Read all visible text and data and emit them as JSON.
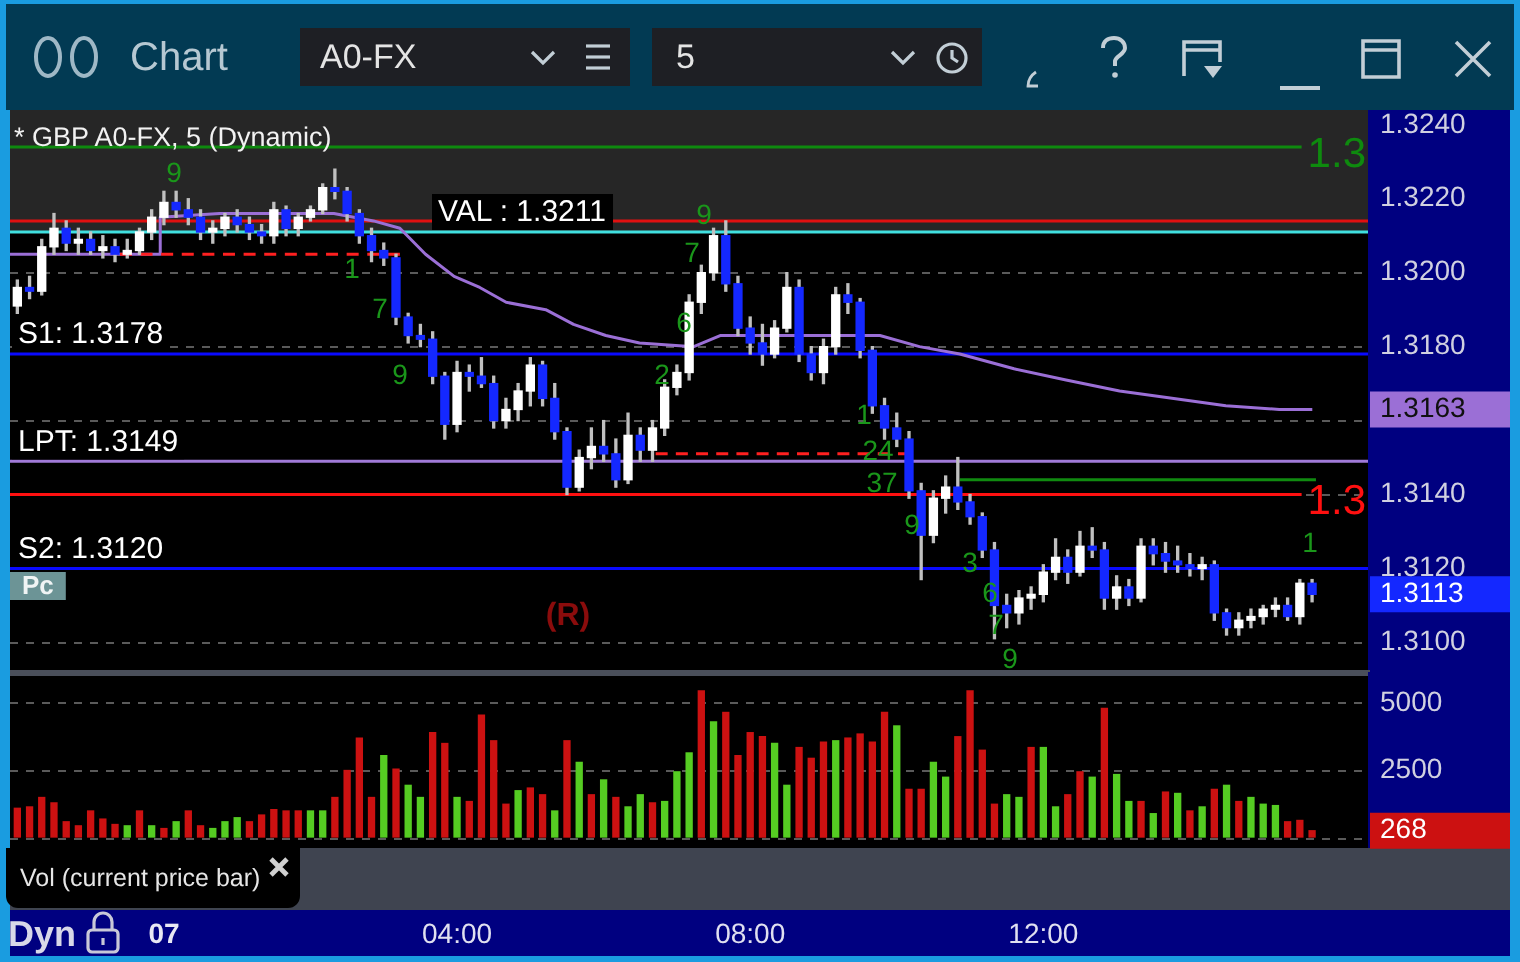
{
  "chart_data": [
    {
      "type": "candlestick",
      "title": "* GBP A0-FX, 5 (Dynamic)",
      "x": [
        -2,
        -1.833,
        -1.667,
        -1.5,
        -1.333,
        -1.167,
        -1,
        -0.833,
        -0.667,
        -0.5,
        -0.333,
        -0.167,
        0,
        0.167,
        0.333,
        0.5,
        0.667,
        0.833,
        1,
        1.167,
        1.333,
        1.5,
        1.667,
        1.833,
        2,
        2.167,
        2.333,
        2.5,
        2.667,
        2.833,
        3,
        3.167,
        3.333,
        3.5,
        3.667,
        3.833,
        4,
        4.167,
        4.333,
        4.5,
        4.667,
        4.833,
        5,
        5.167,
        5.333,
        5.5,
        5.667,
        5.833,
        6,
        6.167,
        6.333,
        6.5,
        6.667,
        6.833,
        7,
        7.167,
        7.333,
        7.5,
        7.667,
        7.833,
        8,
        8.167,
        8.333,
        8.5,
        8.667,
        8.833,
        9,
        9.167,
        9.333,
        9.5,
        9.667,
        9.833,
        10,
        10.167,
        10.333,
        10.5,
        10.667,
        10.833,
        11,
        11.167,
        11.333,
        11.5,
        11.667,
        11.833,
        12,
        12.167,
        12.333,
        12.5,
        12.667,
        12.833,
        13,
        13.167,
        13.333,
        13.5,
        13.667,
        13.833,
        14,
        14.167,
        14.333,
        14.5,
        14.667,
        14.833,
        15,
        15.167,
        15.333,
        15.5,
        15.667
      ],
      "ohlc": [
        [
          1.3191,
          1.3198,
          1.3189,
          1.3196
        ],
        [
          1.3196,
          1.3199,
          1.3193,
          1.3195
        ],
        [
          1.3195,
          1.3209,
          1.3194,
          1.3207
        ],
        [
          1.3207,
          1.3216,
          1.3205,
          1.3212
        ],
        [
          1.3212,
          1.3214,
          1.3206,
          1.3208
        ],
        [
          1.3208,
          1.3212,
          1.3205,
          1.3209
        ],
        [
          1.3209,
          1.3211,
          1.3205,
          1.3206
        ],
        [
          1.3206,
          1.321,
          1.3204,
          1.3207
        ],
        [
          1.3207,
          1.3209,
          1.3203,
          1.3205
        ],
        [
          1.3205,
          1.3209,
          1.3204,
          1.3206
        ],
        [
          1.3206,
          1.3212,
          1.3205,
          1.3211
        ],
        [
          1.3211,
          1.3217,
          1.3209,
          1.3215
        ],
        [
          1.3215,
          1.3222,
          1.3213,
          1.3219
        ],
        [
          1.3219,
          1.3222,
          1.3215,
          1.3217
        ],
        [
          1.3217,
          1.322,
          1.3213,
          1.3215
        ],
        [
          1.3215,
          1.3217,
          1.3209,
          1.3211
        ],
        [
          1.3211,
          1.3214,
          1.3208,
          1.3212
        ],
        [
          1.3212,
          1.3216,
          1.321,
          1.3215
        ],
        [
          1.3215,
          1.3217,
          1.3211,
          1.3213
        ],
        [
          1.3213,
          1.3215,
          1.3209,
          1.3211
        ],
        [
          1.3211,
          1.3213,
          1.3208,
          1.321
        ],
        [
          1.321,
          1.3219,
          1.3208,
          1.3217
        ],
        [
          1.3217,
          1.3218,
          1.321,
          1.3212
        ],
        [
          1.3212,
          1.3216,
          1.321,
          1.3215
        ],
        [
          1.3215,
          1.3218,
          1.3214,
          1.3217
        ],
        [
          1.3217,
          1.3224,
          1.3216,
          1.3223
        ],
        [
          1.3223,
          1.3228,
          1.322,
          1.3222
        ],
        [
          1.3222,
          1.3223,
          1.3214,
          1.3216
        ],
        [
          1.3216,
          1.3217,
          1.3208,
          1.321
        ],
        [
          1.321,
          1.3212,
          1.3203,
          1.3206
        ],
        [
          1.3206,
          1.3208,
          1.3202,
          1.3204
        ],
        [
          1.3204,
          1.3205,
          1.3186,
          1.3188
        ],
        [
          1.3188,
          1.3189,
          1.3181,
          1.3183
        ],
        [
          1.3183,
          1.3186,
          1.318,
          1.3182
        ],
        [
          1.3182,
          1.3184,
          1.317,
          1.3172
        ],
        [
          1.3172,
          1.3173,
          1.3155,
          1.3159
        ],
        [
          1.3159,
          1.3176,
          1.3157,
          1.3173
        ],
        [
          1.3173,
          1.3175,
          1.3168,
          1.3172
        ],
        [
          1.3172,
          1.3177,
          1.3169,
          1.317
        ],
        [
          1.317,
          1.3172,
          1.3158,
          1.316
        ],
        [
          1.316,
          1.3166,
          1.3158,
          1.3163
        ],
        [
          1.3163,
          1.317,
          1.316,
          1.3168
        ],
        [
          1.3168,
          1.3177,
          1.3164,
          1.3175
        ],
        [
          1.3175,
          1.3176,
          1.3164,
          1.3166
        ],
        [
          1.3166,
          1.317,
          1.3155,
          1.3157
        ],
        [
          1.3157,
          1.3158,
          1.314,
          1.3142
        ],
        [
          1.3142,
          1.3152,
          1.3141,
          1.315
        ],
        [
          1.315,
          1.3158,
          1.3147,
          1.3153
        ],
        [
          1.3153,
          1.316,
          1.3149,
          1.3151
        ],
        [
          1.3151,
          1.3155,
          1.3142,
          1.3144
        ],
        [
          1.3144,
          1.3162,
          1.3143,
          1.3156
        ],
        [
          1.3156,
          1.3158,
          1.3149,
          1.3152
        ],
        [
          1.3152,
          1.316,
          1.3149,
          1.3158
        ],
        [
          1.3158,
          1.3171,
          1.3156,
          1.3169
        ],
        [
          1.3169,
          1.3175,
          1.3167,
          1.3173
        ],
        [
          1.3173,
          1.3194,
          1.3171,
          1.3192
        ],
        [
          1.3192,
          1.3202,
          1.3189,
          1.32
        ],
        [
          1.32,
          1.3212,
          1.3198,
          1.321
        ],
        [
          1.321,
          1.3214,
          1.3195,
          1.3197
        ],
        [
          1.3197,
          1.3199,
          1.3183,
          1.3185
        ],
        [
          1.3185,
          1.3188,
          1.3178,
          1.3181
        ],
        [
          1.3181,
          1.3186,
          1.3175,
          1.3178
        ],
        [
          1.3178,
          1.3187,
          1.3177,
          1.3185
        ],
        [
          1.3185,
          1.32,
          1.3184,
          1.3196
        ],
        [
          1.3196,
          1.3198,
          1.3176,
          1.3178
        ],
        [
          1.3178,
          1.318,
          1.3171,
          1.3173
        ],
        [
          1.3173,
          1.3182,
          1.317,
          1.318
        ],
        [
          1.318,
          1.3196,
          1.3178,
          1.3194
        ],
        [
          1.3194,
          1.3197,
          1.3189,
          1.3192
        ],
        [
          1.3192,
          1.3193,
          1.3177,
          1.3179
        ],
        [
          1.3179,
          1.318,
          1.3162,
          1.3164
        ],
        [
          1.3164,
          1.3166,
          1.3155,
          1.3158
        ],
        [
          1.3158,
          1.3162,
          1.3153,
          1.3155
        ],
        [
          1.3155,
          1.3157,
          1.3139,
          1.3141
        ],
        [
          1.3141,
          1.3143,
          1.3117,
          1.3129
        ],
        [
          1.3129,
          1.3141,
          1.3127,
          1.3139
        ],
        [
          1.3139,
          1.3145,
          1.3135,
          1.3142
        ],
        [
          1.3142,
          1.315,
          1.3136,
          1.3138
        ],
        [
          1.3138,
          1.314,
          1.3132,
          1.3134
        ],
        [
          1.3134,
          1.3135,
          1.3123,
          1.3125
        ],
        [
          1.3125,
          1.3127,
          1.3101,
          1.311
        ],
        [
          1.311,
          1.3113,
          1.3104,
          1.3108
        ],
        [
          1.3108,
          1.3114,
          1.3105,
          1.3112
        ],
        [
          1.3112,
          1.3115,
          1.3109,
          1.3113
        ],
        [
          1.3113,
          1.3121,
          1.3111,
          1.3119
        ],
        [
          1.3119,
          1.3128,
          1.3117,
          1.3123
        ],
        [
          1.3123,
          1.3125,
          1.3116,
          1.3119
        ],
        [
          1.3119,
          1.313,
          1.3118,
          1.3126
        ],
        [
          1.3126,
          1.3131,
          1.3123,
          1.3125
        ],
        [
          1.3125,
          1.3127,
          1.3109,
          1.3112
        ],
        [
          1.3112,
          1.3118,
          1.3109,
          1.3115
        ],
        [
          1.3115,
          1.3117,
          1.311,
          1.3112
        ],
        [
          1.3112,
          1.3128,
          1.3111,
          1.3126
        ],
        [
          1.3126,
          1.3128,
          1.3121,
          1.3124
        ],
        [
          1.3124,
          1.3127,
          1.3119,
          1.3122
        ],
        [
          1.3122,
          1.3126,
          1.3119,
          1.3121
        ],
        [
          1.3121,
          1.3124,
          1.3118,
          1.312
        ],
        [
          1.312,
          1.3123,
          1.3117,
          1.3121
        ],
        [
          1.3121,
          1.3122,
          1.3106,
          1.3108
        ],
        [
          1.3108,
          1.3109,
          1.3102,
          1.3104
        ],
        [
          1.3104,
          1.3108,
          1.3102,
          1.3106
        ],
        [
          1.3106,
          1.3109,
          1.3104,
          1.3107
        ],
        [
          1.3107,
          1.311,
          1.3105,
          1.3109
        ],
        [
          1.3109,
          1.3112,
          1.3107,
          1.311
        ],
        [
          1.311,
          1.3112,
          1.3106,
          1.3107
        ],
        [
          1.3107,
          1.3117,
          1.3105,
          1.3116
        ],
        [
          1.3116,
          1.3117,
          1.3111,
          1.3113
        ]
      ],
      "colors": [
        "#ffffff",
        "#1428ff",
        "#ffffff",
        "#ffffff",
        "#1428ff",
        "#ffffff",
        "#1428ff",
        "#ffffff",
        "#1428ff",
        "#ffffff",
        "#ffffff",
        "#ffffff",
        "#ffffff",
        "#1428ff",
        "#1428ff",
        "#1428ff",
        "#ffffff",
        "#ffffff",
        "#1428ff",
        "#1428ff",
        "#1428ff",
        "#ffffff",
        "#1428ff",
        "#ffffff",
        "#ffffff",
        "#ffffff",
        "#1428ff",
        "#1428ff",
        "#1428ff",
        "#1428ff",
        "#1428ff",
        "#1428ff",
        "#1428ff",
        "#1428ff",
        "#1428ff",
        "#1428ff",
        "#ffffff",
        "#1428ff",
        "#1428ff",
        "#1428ff",
        "#ffffff",
        "#ffffff",
        "#ffffff",
        "#1428ff",
        "#1428ff",
        "#1428ff",
        "#ffffff",
        "#ffffff",
        "#1428ff",
        "#1428ff",
        "#ffffff",
        "#1428ff",
        "#ffffff",
        "#ffffff",
        "#ffffff",
        "#ffffff",
        "#ffffff",
        "#ffffff",
        "#1428ff",
        "#1428ff",
        "#1428ff",
        "#1428ff",
        "#ffffff",
        "#ffffff",
        "#1428ff",
        "#1428ff",
        "#ffffff",
        "#ffffff",
        "#1428ff",
        "#1428ff",
        "#1428ff",
        "#1428ff",
        "#1428ff",
        "#1428ff",
        "#1428ff",
        "#ffffff",
        "#ffffff",
        "#1428ff",
        "#1428ff",
        "#1428ff",
        "#1428ff",
        "#1428ff",
        "#ffffff",
        "#ffffff",
        "#ffffff",
        "#ffffff",
        "#1428ff",
        "#ffffff",
        "#1428ff",
        "#1428ff",
        "#ffffff",
        "#1428ff",
        "#ffffff",
        "#1428ff",
        "#1428ff",
        "#1428ff",
        "#1428ff",
        "#ffffff",
        "#1428ff",
        "#1428ff",
        "#ffffff",
        "#ffffff",
        "#ffffff",
        "#ffffff",
        "#1428ff",
        "#ffffff",
        "#1428ff"
      ],
      "color": "#c0c0c0",
      "series": [
        {
          "type": "line",
          "x": [
            -2.1,
            -0.05,
            -0.05,
            0.76,
            2.32,
            2.86,
            3.22,
            3.57,
            3.96,
            4.31,
            4.67,
            5.21,
            5.59,
            6.03,
            6.49,
            7.23,
            7.59,
            8.49,
            9.77,
            10.31,
            10.86,
            11.6,
            12.31,
            13.04,
            13.78,
            14.49,
            15.22,
            15.67
          ],
          "values": [
            1.3205,
            1.3205,
            1.3215,
            1.3216,
            1.3216,
            1.3214,
            1.3212,
            1.3205,
            1.3199,
            1.3196,
            1.3192,
            1.319,
            1.3186,
            1.3183,
            1.3181,
            1.318,
            1.3183,
            1.3183,
            1.3183,
            1.318,
            1.3178,
            1.3174,
            1.3171,
            1.3168,
            1.3166,
            1.3164,
            1.3163,
            1.3163
          ],
          "color": "#9b6fd6"
        },
        {
          "type": "line",
          "x": [
            -0.6,
            3.22
          ],
          "values": [
            1.3205,
            1.3205
          ],
          "color": "#ff2020",
          "line_style": "dashed"
        },
        {
          "type": "line",
          "x": [
            6.71,
            10.18
          ],
          "values": [
            1.3151,
            1.3151
          ],
          "color": "#ff2020",
          "line_style": "dashed"
        },
        {
          "type": "line",
          "x": [
            10.86,
            15.72
          ],
          "values": [
            1.3144,
            1.3144
          ],
          "color": "#108a10"
        }
      ],
      "xlim": [
        -2.1,
        16.43
      ],
      "ylim": [
        1.3092,
        1.3244
      ],
      "yticks": [
        {
          "value": 1.31,
          "label": "1.3100"
        },
        {
          "value": 1.3113,
          "label": "1.3113"
        },
        {
          "value": 1.312,
          "label": "1.3120"
        },
        {
          "value": 1.314,
          "label": "1.3140"
        },
        {
          "value": 1.316,
          "label": null
        },
        {
          "value": 1.3163,
          "label": "1.3163"
        },
        {
          "value": 1.318,
          "label": "1.3180"
        },
        {
          "value": 1.32,
          "label": "1.3200"
        },
        {
          "value": 1.322,
          "label": "1.3220"
        },
        {
          "value": 1.324,
          "label": "1.3240"
        }
      ],
      "tick_labels": "y",
      "grid": "y",
      "bands": [
        {
          "axis": "y",
          "from": 1.3211,
          "to": 1.3244,
          "color": "#262626"
        }
      ],
      "ref_lines": [
        {
          "axis": "y",
          "value": 1.3234,
          "color": "#0e8a0e"
        },
        {
          "axis": "y",
          "value": 1.3214,
          "color": "#e01010"
        },
        {
          "axis": "y",
          "value": 1.3211,
          "label": "VAL : 1.3211",
          "color": "#40e0e0"
        },
        {
          "axis": "y",
          "value": 1.3178,
          "label": "S1: 1.3178",
          "color": "#0a0aff"
        },
        {
          "axis": "y",
          "value": 1.3149,
          "label": "LPT: 1.3149",
          "color": "#a07ad8"
        },
        {
          "axis": "y",
          "value": 1.314,
          "color": "#ff1010"
        },
        {
          "axis": "y",
          "value": 1.312,
          "label": "S2: 1.3120",
          "color": "#0a0aff"
        }
      ],
      "annotations": [
        "Chart",
        "A0-FX",
        "5",
        "Pc",
        "(R)",
        "9",
        "1",
        "7",
        "9",
        "2",
        "6",
        "7",
        "9",
        "1",
        "24",
        "37",
        "9",
        "3",
        "6",
        "7",
        "9",
        "1",
        "1.3",
        "1.3"
      ]
    },
    {
      "type": "bar",
      "title": "Vol (current price bar)",
      "x": [
        -2,
        -1.833,
        -1.667,
        -1.5,
        -1.333,
        -1.167,
        -1,
        -0.833,
        -0.667,
        -0.5,
        -0.333,
        -0.167,
        0,
        0.167,
        0.333,
        0.5,
        0.667,
        0.833,
        1,
        1.167,
        1.333,
        1.5,
        1.667,
        1.833,
        2,
        2.167,
        2.333,
        2.5,
        2.667,
        2.833,
        3,
        3.167,
        3.333,
        3.5,
        3.667,
        3.833,
        4,
        4.167,
        4.333,
        4.5,
        4.667,
        4.833,
        5,
        5.167,
        5.333,
        5.5,
        5.667,
        5.833,
        6,
        6.167,
        6.333,
        6.5,
        6.667,
        6.833,
        7,
        7.167,
        7.333,
        7.5,
        7.667,
        7.833,
        8,
        8.167,
        8.333,
        8.5,
        8.667,
        8.833,
        9,
        9.167,
        9.333,
        9.5,
        9.667,
        9.833,
        10,
        10.167,
        10.333,
        10.5,
        10.667,
        10.833,
        11,
        11.167,
        11.333,
        11.5,
        11.667,
        11.833,
        12,
        12.167,
        12.333,
        12.5,
        12.667,
        12.833,
        13,
        13.167,
        13.333,
        13.5,
        13.667,
        13.833,
        14,
        14.167,
        14.333,
        14.5,
        14.667,
        14.833,
        15,
        15.167,
        15.333,
        15.5,
        15.667
      ],
      "values": [
        1100,
        1150,
        1500,
        1300,
        600,
        450,
        1000,
        700,
        500,
        450,
        1000,
        450,
        350,
        600,
        1000,
        450,
        350,
        600,
        750,
        600,
        850,
        1050,
        1000,
        1000,
        1000,
        1000,
        1500,
        2500,
        3700,
        1500,
        3050,
        2550,
        1950,
        1500,
        3900,
        3500,
        1500,
        1350,
        4550,
        3600,
        1250,
        1750,
        1850,
        1600,
        1000,
        3600,
        2800,
        1600,
        2150,
        1500,
        1150,
        1600,
        1300,
        1350,
        2450,
        3150,
        5450,
        4300,
        4650,
        3050,
        3900,
        3750,
        3500,
        1950,
        3350,
        2950,
        3550,
        3600,
        3700,
        3850,
        3550,
        4650,
        4150,
        1800,
        1800,
        2800,
        2250,
        3750,
        5450,
        3250,
        1250,
        1600,
        1500,
        3350,
        3350,
        1150,
        1600,
        2450,
        2250,
        4800,
        2350,
        1350,
        1350,
        900,
        1700,
        1650,
        1000,
        1150,
        1800,
        1950,
        1350,
        1500,
        1250,
        1200,
        600,
        650,
        268
      ],
      "colors": [
        "#cc1111",
        "#cc1111",
        "#cc1111",
        "#cc1111",
        "#cc1111",
        "#cc1111",
        "#cc1111",
        "#cc1111",
        "#cc1111",
        "#55cc22",
        "#cc1111",
        "#55cc22",
        "#cc1111",
        "#55cc22",
        "#cc1111",
        "#cc1111",
        "#55cc22",
        "#55cc22",
        "#55cc22",
        "#cc1111",
        "#cc1111",
        "#cc1111",
        "#cc1111",
        "#cc1111",
        "#55cc22",
        "#55cc22",
        "#cc1111",
        "#cc1111",
        "#cc1111",
        "#cc1111",
        "#55cc22",
        "#cc1111",
        "#55cc22",
        "#55cc22",
        "#cc1111",
        "#cc1111",
        "#55cc22",
        "#cc1111",
        "#cc1111",
        "#cc1111",
        "#cc1111",
        "#55cc22",
        "#cc1111",
        "#cc1111",
        "#55cc22",
        "#cc1111",
        "#55cc22",
        "#cc1111",
        "#55cc22",
        "#cc1111",
        "#55cc22",
        "#55cc22",
        "#cc1111",
        "#55cc22",
        "#55cc22",
        "#55cc22",
        "#cc1111",
        "#55cc22",
        "#cc1111",
        "#cc1111",
        "#cc1111",
        "#cc1111",
        "#55cc22",
        "#55cc22",
        "#cc1111",
        "#cc1111",
        "#cc1111",
        "#55cc22",
        "#cc1111",
        "#cc1111",
        "#cc1111",
        "#cc1111",
        "#55cc22",
        "#cc1111",
        "#cc1111",
        "#55cc22",
        "#55cc22",
        "#cc1111",
        "#cc1111",
        "#cc1111",
        "#cc1111",
        "#55cc22",
        "#55cc22",
        "#cc1111",
        "#55cc22",
        "#55cc22",
        "#cc1111",
        "#cc1111",
        "#55cc22",
        "#cc1111",
        "#55cc22",
        "#55cc22",
        "#cc1111",
        "#55cc22",
        "#cc1111",
        "#55cc22",
        "#cc1111",
        "#55cc22",
        "#cc1111",
        "#55cc22",
        "#cc1111",
        "#55cc22",
        "#55cc22",
        "#55cc22",
        "#cc1111",
        "#cc1111",
        "#cc1111"
      ],
      "xlim": [
        -2.1,
        16.43
      ],
      "xticks": [
        {
          "value": 4,
          "label": "04:00"
        },
        {
          "value": 8,
          "label": "08:00"
        },
        {
          "value": 12,
          "label": "12:00"
        }
      ],
      "ylim": [
        0,
        6000
      ],
      "yticks": [
        {
          "value": 0,
          "label": null
        },
        {
          "value": 268,
          "label": "268"
        },
        2500,
        5000
      ],
      "grid": "y",
      "annotations": [
        "Dyn",
        "07"
      ]
    }
  ]
}
